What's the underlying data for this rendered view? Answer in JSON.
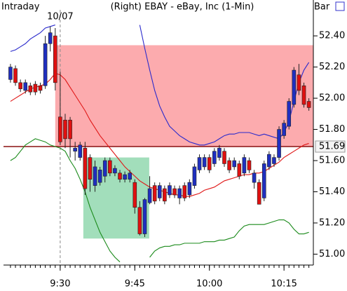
{
  "chart_data": {
    "type": "candlestick",
    "title": "(Right)  EBAY - eBay, Inc  (1-Min)",
    "mode_label": "Intraday",
    "view_label": "Bar",
    "divider": {
      "x": 570,
      "label": "10/07"
    },
    "x": [
      560,
      561,
      562,
      563,
      564,
      565,
      566,
      567,
      568,
      569,
      570,
      571,
      572,
      573,
      574,
      575,
      576,
      577,
      578,
      579,
      580,
      581,
      582,
      583,
      584,
      585,
      586,
      587,
      588,
      589,
      590,
      591,
      592,
      593,
      594,
      595,
      596,
      597,
      598,
      599,
      600,
      601,
      602,
      603,
      604,
      605,
      606,
      607,
      608,
      609,
      610,
      611,
      612,
      613,
      614,
      615,
      616,
      617,
      618,
      619,
      620
    ],
    "open": [
      52.12,
      52.19,
      52.1,
      52.05,
      52.08,
      52.09,
      52.08,
      52.08,
      52.35,
      52.4,
      51.88,
      51.86,
      51.86,
      51.66,
      51.62,
      51.68,
      51.62,
      51.44,
      51.46,
      51.5,
      51.6,
      51.52,
      51.52,
      51.48,
      51.48,
      51.46,
      51.3,
      51.13,
      51.33,
      51.44,
      51.36,
      51.42,
      51.38,
      51.42,
      51.36,
      51.44,
      51.38,
      51.44,
      51.54,
      51.56,
      51.62,
      51.58,
      51.62,
      51.66,
      51.6,
      51.56,
      51.58,
      51.52,
      51.6,
      51.46,
      51.46,
      51.36,
      51.56,
      51.58,
      51.62,
      51.76,
      51.82,
      51.96,
      52.15,
      52.08,
      51.98
    ],
    "high": [
      52.22,
      52.21,
      52.12,
      52.12,
      52.1,
      52.11,
      52.1,
      52.4,
      52.46,
      52.45,
      52.17,
      51.9,
      51.88,
      51.72,
      51.72,
      51.72,
      51.64,
      51.6,
      51.56,
      51.62,
      51.62,
      51.57,
      51.54,
      51.53,
      51.54,
      51.48,
      51.34,
      51.36,
      51.5,
      51.46,
      51.46,
      51.44,
      51.46,
      51.44,
      51.44,
      51.46,
      51.48,
      51.58,
      51.64,
      51.64,
      51.64,
      51.68,
      51.7,
      51.68,
      51.62,
      51.62,
      51.6,
      51.64,
      51.62,
      51.54,
      51.48,
      51.6,
      51.66,
      51.64,
      51.82,
      51.86,
      52.0,
      52.2,
      52.22,
      52.1,
      52.0
    ],
    "low": [
      52.1,
      52.08,
      52.04,
      52.03,
      52.02,
      52.02,
      52.03,
      52.06,
      52.3,
      52.05,
      51.7,
      51.68,
      51.62,
      51.6,
      51.6,
      51.38,
      51.4,
      51.4,
      51.44,
      51.46,
      51.5,
      51.5,
      51.46,
      51.46,
      51.46,
      51.26,
      51.12,
      51.11,
      51.32,
      51.32,
      51.34,
      51.32,
      51.36,
      51.36,
      51.32,
      51.34,
      51.36,
      51.42,
      51.52,
      51.54,
      51.52,
      51.56,
      51.6,
      51.56,
      51.52,
      51.54,
      51.48,
      51.5,
      51.52,
      51.42,
      51.32,
      51.34,
      51.54,
      51.56,
      51.6,
      51.74,
      51.8,
      51.94,
      52.02,
      51.94,
      51.92
    ],
    "close": [
      52.2,
      52.1,
      52.06,
      52.1,
      52.04,
      52.04,
      52.05,
      52.35,
      52.42,
      52.1,
      51.72,
      51.74,
      51.74,
      51.68,
      51.7,
      51.42,
      51.48,
      51.56,
      51.54,
      51.6,
      51.52,
      51.55,
      51.48,
      51.51,
      51.52,
      51.3,
      51.13,
      51.35,
      51.42,
      51.34,
      51.44,
      51.34,
      51.44,
      51.38,
      51.42,
      51.36,
      51.46,
      51.56,
      51.62,
      51.62,
      51.54,
      51.66,
      51.68,
      51.58,
      51.54,
      51.6,
      51.5,
      51.62,
      51.54,
      51.52,
      51.32,
      51.58,
      51.64,
      51.62,
      51.8,
      51.84,
      51.98,
      52.18,
      52.05,
      51.96,
      51.94
    ],
    "up_color": "#1f2fc0",
    "down_color": "#e01010",
    "overlays": [
      {
        "color": "#2a2acc",
        "values": [
          52.3,
          52.31,
          52.33,
          52.35,
          52.38,
          52.4,
          52.42,
          52.45,
          52.46,
          52.47,
          null,
          null,
          null,
          null,
          null,
          null,
          null,
          null,
          null,
          null,
          null,
          null,
          null,
          null,
          null,
          null,
          52.47,
          52.32,
          52.18,
          52.05,
          51.95,
          51.88,
          51.82,
          51.79,
          51.76,
          51.74,
          51.72,
          51.71,
          51.7,
          51.7,
          51.71,
          51.72,
          51.74,
          51.76,
          51.77,
          51.77,
          51.78,
          51.78,
          51.78,
          51.77,
          51.76,
          51.77,
          51.76,
          51.75,
          51.74,
          51.78,
          51.85,
          51.98,
          52.1,
          52.18,
          52.23
        ]
      },
      {
        "color": "#e01818",
        "values": [
          51.98,
          52.0,
          52.02,
          52.04,
          52.06,
          52.07,
          52.08,
          52.09,
          52.12,
          52.16,
          52.15,
          52.12,
          52.07,
          52.02,
          51.97,
          51.92,
          51.86,
          51.81,
          51.76,
          51.72,
          51.68,
          51.64,
          51.6,
          51.56,
          51.53,
          51.5,
          51.47,
          51.45,
          51.43,
          51.42,
          51.41,
          51.4,
          51.39,
          51.38,
          51.38,
          51.37,
          51.37,
          51.38,
          51.39,
          51.41,
          51.42,
          51.43,
          51.45,
          51.47,
          51.48,
          51.49,
          51.5,
          51.51,
          51.51,
          51.52,
          51.52,
          51.53,
          51.55,
          51.57,
          51.59,
          51.62,
          51.64,
          51.66,
          51.68,
          51.7,
          51.71
        ]
      },
      {
        "color": "#1a8a1a",
        "values": [
          51.6,
          51.62,
          51.66,
          51.7,
          51.72,
          51.74,
          51.73,
          51.72,
          51.7,
          51.69,
          51.68,
          51.66,
          51.6,
          51.55,
          51.48,
          51.4,
          51.3,
          51.22,
          51.14,
          51.08,
          51.02,
          50.98,
          50.95,
          null,
          null,
          null,
          null,
          null,
          50.98,
          51.02,
          51.04,
          51.05,
          51.05,
          51.06,
          51.06,
          51.07,
          51.07,
          51.07,
          51.07,
          51.08,
          51.08,
          51.08,
          51.09,
          51.09,
          51.1,
          51.11,
          51.15,
          51.18,
          51.19,
          51.19,
          51.19,
          51.19,
          51.2,
          51.21,
          51.22,
          51.22,
          51.2,
          51.16,
          51.13,
          51.13,
          51.14
        ]
      }
    ],
    "zones": [
      {
        "x0": 569,
        "x1": 620.9,
        "y0": 51.69,
        "y1": 52.34,
        "color": "rgba(250,120,125,0.62)"
      },
      {
        "x0": 574.65,
        "x1": 587.9,
        "y0": 51.1,
        "y1": 51.62,
        "color": "rgba(70,190,120,0.5)"
      }
    ],
    "hline": {
      "value": 51.69,
      "color": "#8a1010"
    },
    "xlim": [
      558.6,
      620.9
    ],
    "ylim": [
      50.93,
      52.63
    ],
    "xticks": [
      {
        "value": 570,
        "label": "9:30"
      },
      {
        "value": 585,
        "label": "9:45"
      },
      {
        "value": 600,
        "label": "10:00"
      },
      {
        "value": 615,
        "label": "10:15"
      }
    ],
    "yticks": [
      {
        "value": 52.4,
        "label": "52.40"
      },
      {
        "value": 52.2,
        "label": "52.20"
      },
      {
        "value": 52.0,
        "label": "52.00"
      },
      {
        "value": 51.8,
        "label": "51.80"
      },
      {
        "value": 51.6,
        "label": "51.60"
      },
      {
        "value": 51.4,
        "label": "51.40"
      },
      {
        "value": 51.2,
        "label": "51.20"
      },
      {
        "value": 51.0,
        "label": "51.00"
      }
    ]
  }
}
